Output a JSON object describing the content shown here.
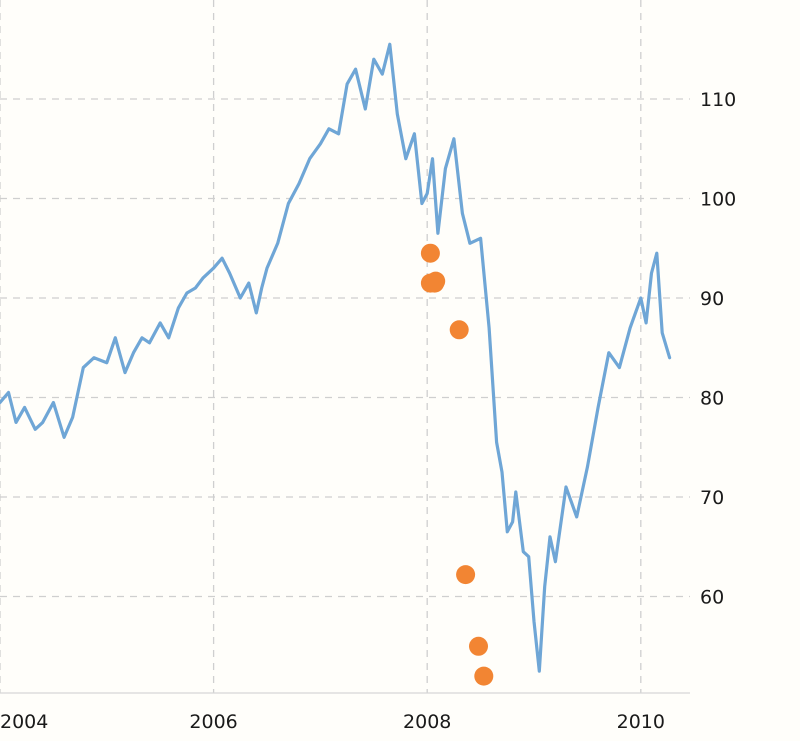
{
  "chart_data": {
    "type": "line",
    "title": "",
    "xlabel": "",
    "ylabel": "",
    "xlim": [
      2004.0,
      2010.27
    ],
    "ylim": [
      50.3,
      119.5
    ],
    "x_ticks": [
      {
        "value": 2004,
        "label": "2004"
      },
      {
        "value": 2006,
        "label": "2006"
      },
      {
        "value": 2008,
        "label": "2008"
      },
      {
        "value": 2010,
        "label": "2010"
      }
    ],
    "y_ticks": [
      {
        "value": 60,
        "label": "60"
      },
      {
        "value": 70,
        "label": "70"
      },
      {
        "value": 80,
        "label": "80"
      },
      {
        "value": 90,
        "label": "90"
      },
      {
        "value": 100,
        "label": "100"
      },
      {
        "value": 110,
        "label": "110"
      }
    ],
    "y_axis_position": "right",
    "grid": true,
    "legend": "none",
    "colors": {
      "line": "#6fa6d6",
      "points": "#f28533",
      "grid": "#cfcfcf"
    },
    "series": [
      {
        "type": "line",
        "x": [
          2004.0,
          2004.08,
          2004.15,
          2004.23,
          2004.33,
          2004.4,
          2004.5,
          2004.6,
          2004.68,
          2004.78,
          2004.88,
          2005.0,
          2005.08,
          2005.17,
          2005.25,
          2005.33,
          2005.4,
          2005.5,
          2005.58,
          2005.67,
          2005.75,
          2005.83,
          2005.9,
          2006.0,
          2006.08,
          2006.15,
          2006.25,
          2006.33,
          2006.4,
          2006.45,
          2006.5,
          2006.6,
          2006.7,
          2006.8,
          2006.9,
          2007.0,
          2007.08,
          2007.17,
          2007.25,
          2007.33,
          2007.42,
          2007.5,
          2007.58,
          2007.65,
          2007.72,
          2007.8,
          2007.88,
          2007.95,
          2008.0,
          2008.05,
          2008.1,
          2008.17,
          2008.25,
          2008.33,
          2008.4,
          2008.5,
          2008.58,
          2008.65,
          2008.7,
          2008.75,
          2008.8,
          2008.83,
          2008.9,
          2008.95,
          2009.0,
          2009.05,
          2009.1,
          2009.15,
          2009.2,
          2009.3,
          2009.4,
          2009.5,
          2009.6,
          2009.7,
          2009.8,
          2009.9,
          2010.0,
          2010.05,
          2010.1,
          2010.15,
          2010.2,
          2010.27
        ],
        "y": [
          79.5,
          80.5,
          77.5,
          79.0,
          76.8,
          77.5,
          79.5,
          76.0,
          78.0,
          83.0,
          84.0,
          83.5,
          86.0,
          82.5,
          84.5,
          86.0,
          85.5,
          87.5,
          86.0,
          89.0,
          90.5,
          91.0,
          92.0,
          93.0,
          94.0,
          92.5,
          90.0,
          91.5,
          88.5,
          91.0,
          93.0,
          95.5,
          99.5,
          101.5,
          104.0,
          105.5,
          107.0,
          106.5,
          111.5,
          113.0,
          109.0,
          114.0,
          112.5,
          115.5,
          108.5,
          104.0,
          106.5,
          99.5,
          100.5,
          104.0,
          96.5,
          103.0,
          106.0,
          98.5,
          95.5,
          96.0,
          87.0,
          75.5,
          72.5,
          66.5,
          67.5,
          70.5,
          64.5,
          64.0,
          57.5,
          52.5,
          61.0,
          66.0,
          63.5,
          71.0,
          68.0,
          73.0,
          79.0,
          84.5,
          83.0,
          87.0,
          90.0,
          87.5,
          92.5,
          94.5,
          86.5,
          84.0
        ]
      },
      {
        "type": "scatter",
        "x": [
          2008.03,
          2008.03,
          2008.07,
          2008.08,
          2008.3,
          2008.36,
          2008.53,
          2008.48
        ],
        "y": [
          94.5,
          91.5,
          91.5,
          91.7,
          86.8,
          62.2,
          52.0,
          55.0
        ]
      }
    ]
  }
}
